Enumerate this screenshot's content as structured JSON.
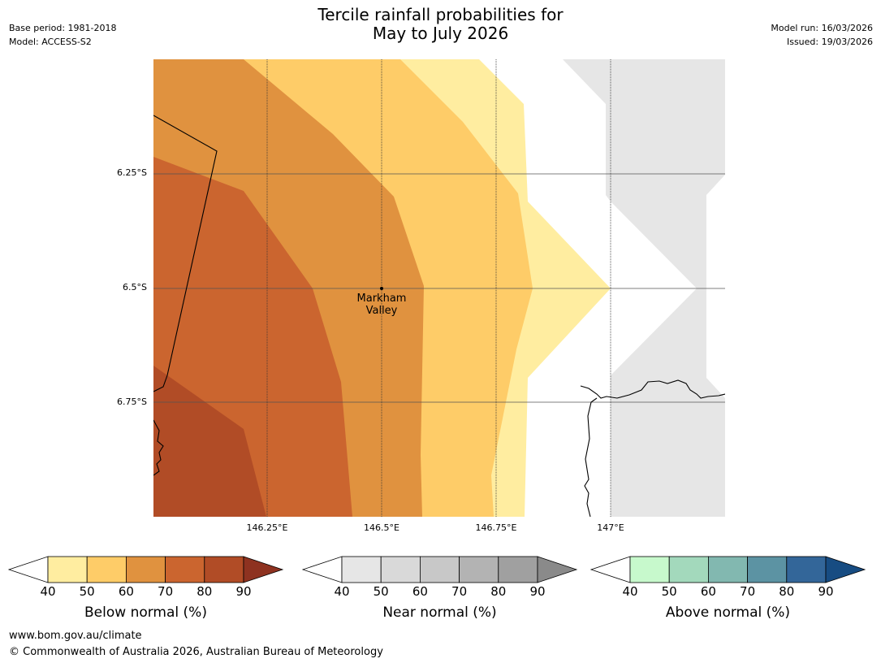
{
  "title": {
    "line1": "Tercile rainfall probabilities for",
    "line2": "May to July 2026"
  },
  "meta_left": {
    "base_period": "Base period: 1981-2018",
    "model": "Model: ACCESS-S2"
  },
  "meta_right": {
    "model_run": "Model run: 16/03/2026",
    "issued": "Issued: 19/03/2026"
  },
  "map": {
    "lat_labels": [
      "6.25°S",
      "6.5°S",
      "6.75°S"
    ],
    "lon_labels": [
      "146.25°E",
      "146.5°E",
      "146.75°E",
      "147°E"
    ],
    "place": {
      "line1": "Markham",
      "line2": "Valley"
    },
    "fill_colors": {
      "below_40": "#ffeda0",
      "below_50": "#fecc68",
      "below_60": "#e0923f",
      "below_70": "#cb652f",
      "below_80": "#b14c26",
      "near_40": "#e6e6e6"
    }
  },
  "colorbars": [
    {
      "title": "Below normal (%)",
      "ticks": [
        "40",
        "50",
        "60",
        "70",
        "80",
        "90"
      ],
      "colors": [
        "#ffeda0",
        "#fecc68",
        "#e0923f",
        "#cb652f",
        "#b14c26"
      ],
      "arrow_color": "#8e3220"
    },
    {
      "title": "Near normal (%)",
      "ticks": [
        "40",
        "50",
        "60",
        "70",
        "80",
        "90"
      ],
      "colors": [
        "#e6e6e6",
        "#d9d9d9",
        "#c8c8c8",
        "#b3b3b3",
        "#a0a0a0"
      ],
      "arrow_color": "#8a8a8a"
    },
    {
      "title": "Above normal (%)",
      "ticks": [
        "40",
        "50",
        "60",
        "70",
        "80",
        "90"
      ],
      "colors": [
        "#c7f9cc",
        "#a3d9bc",
        "#82b8b0",
        "#5c93a3",
        "#336699"
      ],
      "arrow_color": "#174c82"
    }
  ],
  "footer": {
    "url": "www.bom.gov.au/climate",
    "copyright": "© Commonwealth of Australia 2026, Australian Bureau of Meteorology"
  }
}
